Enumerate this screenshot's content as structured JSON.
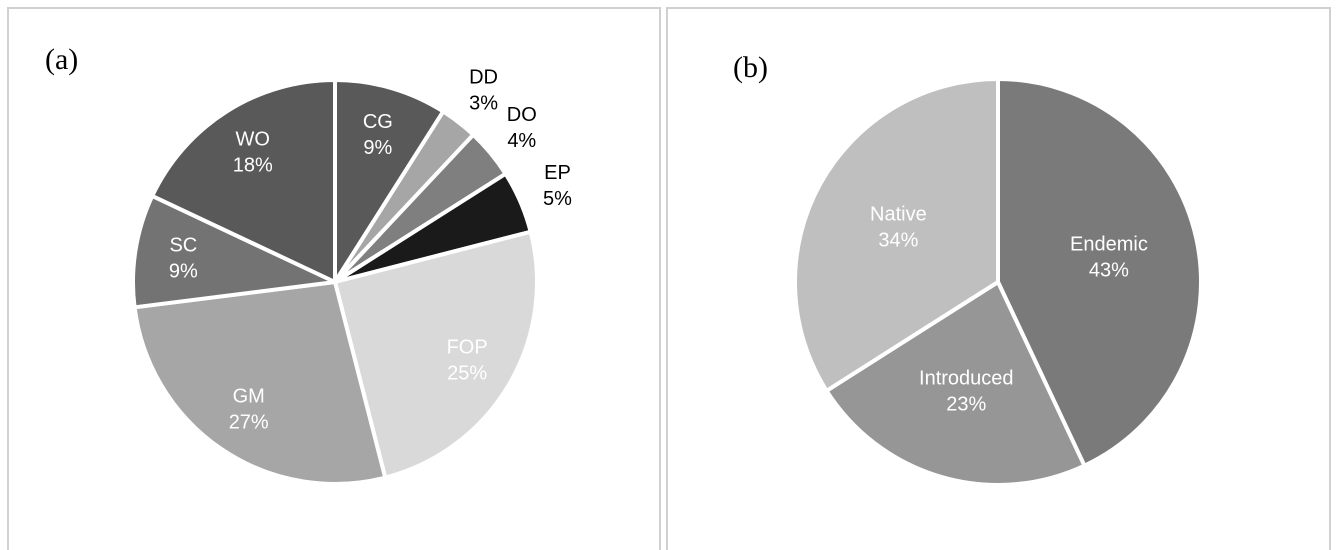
{
  "chart_data": [
    {
      "type": "pie",
      "title": "(a)",
      "categories": [
        "CG",
        "DD",
        "DO",
        "EP",
        "FOP",
        "GM",
        "SC",
        "WO"
      ],
      "values": [
        9,
        3,
        4,
        5,
        25,
        27,
        9,
        18
      ],
      "value_labels": [
        "9%",
        "3%",
        "4%",
        "5%",
        "25%",
        "27%",
        "9%",
        "18%"
      ],
      "colors": [
        "#595959",
        "#a6a6a6",
        "#7f7f7f",
        "#1a1a1a",
        "#d9d9d9",
        "#a6a6a6",
        "#737373",
        "#595959"
      ]
    },
    {
      "type": "pie",
      "title": "(b)",
      "categories": [
        "Endemic",
        "Introduced",
        "Native"
      ],
      "values": [
        43,
        23,
        34
      ],
      "value_labels": [
        "43%",
        "23%",
        "34%"
      ],
      "colors": [
        "#7a7a7a",
        "#969696",
        "#bfbfbf"
      ]
    }
  ]
}
